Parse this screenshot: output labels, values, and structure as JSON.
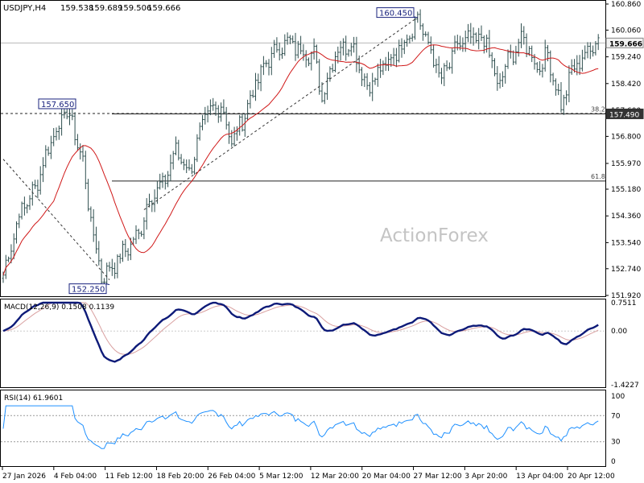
{
  "chart_data": [
    {
      "type": "ohlc",
      "title": "USDJPY,H4",
      "quote": {
        "open": "159.538",
        "high": "159.689",
        "low": "159.506",
        "close": "159.666"
      },
      "ylim": [
        151.92,
        160.86
      ],
      "yticks": [
        "160.860",
        "160.060",
        "159.240",
        "158.420",
        "157.600",
        "156.800",
        "155.970",
        "155.180",
        "154.360",
        "153.540",
        "152.740",
        "151.920"
      ],
      "x_dates": [
        "27 Jan 2026",
        "4 Feb 04:00",
        "11 Feb 12:00",
        "18 Feb 20:00",
        "26 Feb 04:00",
        "5 Mar 12:00",
        "12 Mar 20:00",
        "20 Mar 04:00",
        "27 Mar 12:00",
        "3 Apr 20:00",
        "13 Apr 04:00",
        "20 Apr 12:00"
      ],
      "current_price": "159.666",
      "level_marker": "157.490",
      "fib_levels": [
        {
          "label": "38.2",
          "value": 157.49
        },
        {
          "label": "61.8",
          "value": 155.43
        }
      ],
      "annotations": [
        {
          "text": "157.650",
          "value": 157.65
        },
        {
          "text": "152.250",
          "value": 152.25
        },
        {
          "text": "160.450",
          "value": 160.45
        }
      ],
      "watermark": "ActionForex",
      "key_prices": [
        {
          "t": 0,
          "v": 152.55
        },
        {
          "t": 6,
          "v": 154.4
        },
        {
          "t": 12,
          "v": 155.2
        },
        {
          "t": 18,
          "v": 156.7
        },
        {
          "t": 24,
          "v": 157.6
        },
        {
          "t": 27,
          "v": 156.9
        },
        {
          "t": 30,
          "v": 156.0
        },
        {
          "t": 33,
          "v": 154.2
        },
        {
          "t": 37,
          "v": 152.5
        },
        {
          "t": 41,
          "v": 152.8
        },
        {
          "t": 46,
          "v": 153.3
        },
        {
          "t": 51,
          "v": 153.8
        },
        {
          "t": 55,
          "v": 154.9
        },
        {
          "t": 60,
          "v": 155.3
        },
        {
          "t": 65,
          "v": 156.4
        },
        {
          "t": 70,
          "v": 155.7
        },
        {
          "t": 76,
          "v": 157.4
        },
        {
          "t": 82,
          "v": 157.8
        },
        {
          "t": 86,
          "v": 156.6
        },
        {
          "t": 90,
          "v": 157.3
        },
        {
          "t": 95,
          "v": 158.4
        },
        {
          "t": 100,
          "v": 159.2
        },
        {
          "t": 106,
          "v": 159.7
        },
        {
          "t": 111,
          "v": 159.5
        },
        {
          "t": 117,
          "v": 159.3
        },
        {
          "t": 120,
          "v": 158.0
        },
        {
          "t": 125,
          "v": 159.4
        },
        {
          "t": 131,
          "v": 159.7
        },
        {
          "t": 137,
          "v": 158.3
        },
        {
          "t": 143,
          "v": 158.9
        },
        {
          "t": 148,
          "v": 159.4
        },
        {
          "t": 153,
          "v": 160.0
        },
        {
          "t": 156,
          "v": 160.45
        },
        {
          "t": 160,
          "v": 159.6
        },
        {
          "t": 165,
          "v": 158.5
        },
        {
          "t": 171,
          "v": 159.6
        },
        {
          "t": 177,
          "v": 159.8
        },
        {
          "t": 182,
          "v": 159.7
        },
        {
          "t": 186,
          "v": 158.3
        },
        {
          "t": 191,
          "v": 159.3
        },
        {
          "t": 196,
          "v": 159.8
        },
        {
          "t": 201,
          "v": 158.9
        },
        {
          "t": 205,
          "v": 159.3
        },
        {
          "t": 210,
          "v": 157.7
        },
        {
          "t": 214,
          "v": 158.8
        },
        {
          "t": 219,
          "v": 159.3
        },
        {
          "t": 223,
          "v": 159.7
        }
      ]
    },
    {
      "type": "line",
      "title": "MACD(12,26,9) 0.1508 0.1139",
      "ylim": [
        -1.4227,
        0.7511
      ],
      "yticks": [
        "0.7511",
        "0.00",
        "-1.4227"
      ]
    },
    {
      "type": "line",
      "title": "RSI(14) 61.9601",
      "ylim": [
        0,
        100
      ],
      "yticks": [
        "100",
        "70",
        "30",
        "0"
      ]
    }
  ]
}
